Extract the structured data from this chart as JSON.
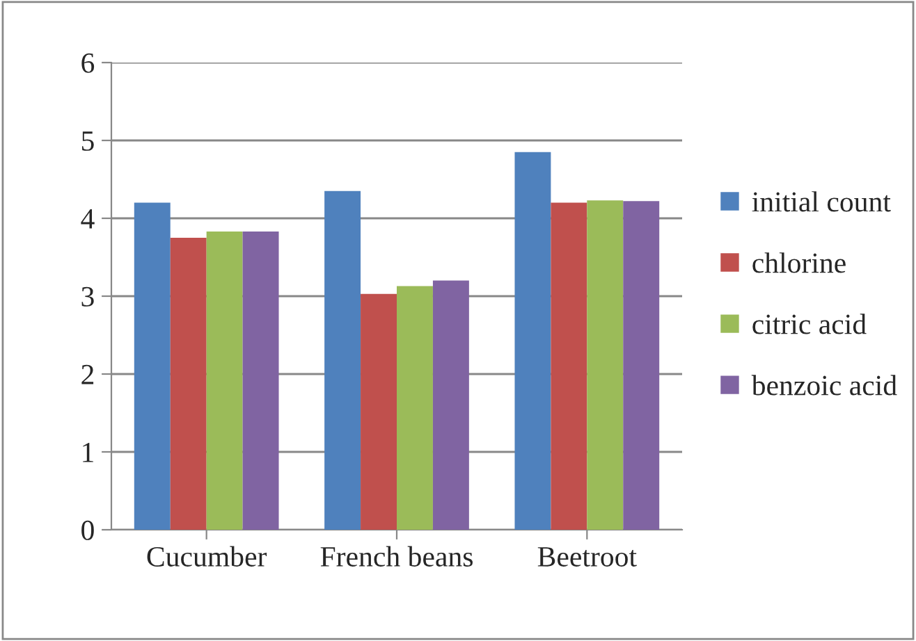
{
  "chart_data": {
    "type": "bar",
    "categories": [
      "Cucumber",
      "French beans",
      "Beetroot"
    ],
    "series": [
      {
        "name": "initial count",
        "color": "#4f81bd",
        "values": [
          4.2,
          4.35,
          4.85
        ]
      },
      {
        "name": "chlorine",
        "color": "#c0504d",
        "values": [
          3.75,
          3.03,
          4.2
        ]
      },
      {
        "name": "citric acid",
        "color": "#9bbb59",
        "values": [
          3.83,
          3.13,
          4.23
        ]
      },
      {
        "name": "benzoic acid",
        "color": "#8064a2",
        "values": [
          3.83,
          3.2,
          4.22
        ]
      }
    ],
    "ylim": [
      0,
      6
    ],
    "yticks": [
      0,
      1,
      2,
      3,
      4,
      5,
      6
    ],
    "grid": "y",
    "legend": "right"
  }
}
